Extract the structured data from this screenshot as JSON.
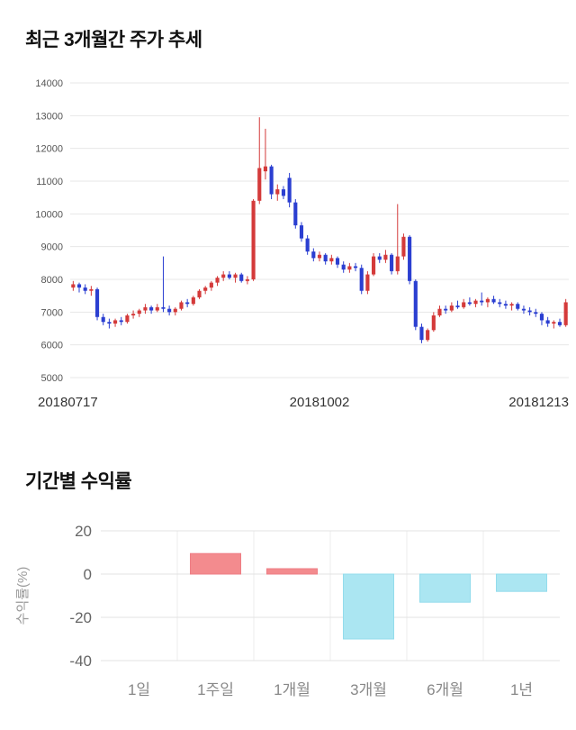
{
  "section_price": {
    "title": "최근 3개월간 주가 추세"
  },
  "section_return": {
    "title": "기간별 수익률"
  },
  "chart_data": [
    {
      "type": "candlestick",
      "title": "최근 3개월간 주가 추세",
      "ylim": [
        5000,
        14000
      ],
      "y_ticks": [
        5000,
        6000,
        7000,
        8000,
        9000,
        10000,
        11000,
        12000,
        13000,
        14000
      ],
      "x_labels": [
        "20180717",
        "20181002",
        "20181213"
      ],
      "up_color": "#d43a3a",
      "down_color": "#2b3fd1",
      "grid_color": "#e7e7e7",
      "tick_label_color": "#555555",
      "x_label_color": "#333333",
      "candles": [
        [
          7750,
          7950,
          7650,
          7850
        ],
        [
          7850,
          7900,
          7600,
          7750
        ],
        [
          7750,
          7850,
          7550,
          7650
        ],
        [
          7650,
          7800,
          7500,
          7700
        ],
        [
          7700,
          7750,
          6750,
          6850
        ],
        [
          6850,
          6950,
          6600,
          6700
        ],
        [
          6700,
          6800,
          6500,
          6650
        ],
        [
          6650,
          6800,
          6550,
          6750
        ],
        [
          6750,
          6850,
          6600,
          6700
        ],
        [
          6700,
          6950,
          6650,
          6900
        ],
        [
          6900,
          7050,
          6800,
          6950
        ],
        [
          6950,
          7100,
          6850,
          7050
        ],
        [
          7050,
          7250,
          6950,
          7150
        ],
        [
          7150,
          7200,
          6950,
          7050
        ],
        [
          7050,
          7250,
          7000,
          7150
        ],
        [
          7150,
          8700,
          7000,
          7100
        ],
        [
          7100,
          7200,
          6900,
          7000
        ],
        [
          7000,
          7150,
          6900,
          7100
        ],
        [
          7100,
          7350,
          7050,
          7300
        ],
        [
          7300,
          7400,
          7150,
          7250
        ],
        [
          7250,
          7500,
          7200,
          7450
        ],
        [
          7450,
          7700,
          7400,
          7650
        ],
        [
          7650,
          7800,
          7550,
          7750
        ],
        [
          7750,
          7950,
          7650,
          7900
        ],
        [
          7900,
          8100,
          7800,
          8050
        ],
        [
          8050,
          8250,
          7950,
          8150
        ],
        [
          8150,
          8250,
          8000,
          8050
        ],
        [
          8050,
          8200,
          7900,
          8150
        ],
        [
          8150,
          8200,
          7900,
          7950
        ],
        [
          7950,
          8100,
          7850,
          8000
        ],
        [
          8000,
          10450,
          7950,
          10400
        ],
        [
          10400,
          12950,
          10300,
          11400
        ],
        [
          11300,
          12600,
          11050,
          11450
        ],
        [
          11450,
          11500,
          10450,
          10600
        ],
        [
          10600,
          10900,
          10400,
          10750
        ],
        [
          10750,
          10850,
          10450,
          10550
        ],
        [
          11100,
          11250,
          10200,
          10350
        ],
        [
          10350,
          10450,
          9550,
          9650
        ],
        [
          9650,
          9750,
          9150,
          9250
        ],
        [
          9250,
          9350,
          8750,
          8850
        ],
        [
          8850,
          8950,
          8550,
          8650
        ],
        [
          8650,
          8850,
          8550,
          8750
        ],
        [
          8750,
          8800,
          8450,
          8550
        ],
        [
          8550,
          8750,
          8450,
          8650
        ],
        [
          8650,
          8700,
          8350,
          8450
        ],
        [
          8450,
          8550,
          8200,
          8300
        ],
        [
          8300,
          8500,
          8200,
          8400
        ],
        [
          8400,
          8500,
          8250,
          8350
        ],
        [
          8350,
          8450,
          7550,
          7650
        ],
        [
          7650,
          8250,
          7550,
          8150
        ],
        [
          8150,
          8800,
          8100,
          8700
        ],
        [
          8700,
          8800,
          8500,
          8600
        ],
        [
          8600,
          8900,
          8500,
          8750
        ],
        [
          8750,
          8800,
          8150,
          8250
        ],
        [
          8250,
          10300,
          8150,
          8700
        ],
        [
          8700,
          9400,
          8600,
          9300
        ],
        [
          9300,
          9350,
          7850,
          7950
        ],
        [
          7950,
          8000,
          6450,
          6550
        ],
        [
          6550,
          6650,
          6050,
          6150
        ],
        [
          6150,
          6500,
          6100,
          6450
        ],
        [
          6450,
          7000,
          6400,
          6900
        ],
        [
          6900,
          7200,
          6850,
          7100
        ],
        [
          7100,
          7200,
          6950,
          7050
        ],
        [
          7050,
          7300,
          7000,
          7200
        ],
        [
          7200,
          7350,
          7100,
          7150
        ],
        [
          7150,
          7400,
          7100,
          7300
        ],
        [
          7300,
          7450,
          7200,
          7250
        ],
        [
          7250,
          7400,
          7150,
          7350
        ],
        [
          7350,
          7600,
          7200,
          7300
        ],
        [
          7300,
          7450,
          7150,
          7400
        ],
        [
          7400,
          7500,
          7250,
          7300
        ],
        [
          7300,
          7400,
          7150,
          7250
        ],
        [
          7250,
          7350,
          7100,
          7200
        ],
        [
          7200,
          7300,
          7050,
          7250
        ],
        [
          7250,
          7300,
          7050,
          7100
        ],
        [
          7100,
          7200,
          6950,
          7050
        ],
        [
          7050,
          7150,
          6900,
          7000
        ],
        [
          7000,
          7100,
          6850,
          6950
        ],
        [
          6950,
          7000,
          6600,
          6750
        ],
        [
          6750,
          6850,
          6550,
          6650
        ],
        [
          6650,
          6750,
          6500,
          6700
        ],
        [
          6700,
          6800,
          6550,
          6600
        ],
        [
          6600,
          7400,
          6550,
          7300
        ]
      ]
    },
    {
      "type": "bar",
      "title": "기간별 수익률",
      "categories": [
        "1일",
        "1주일",
        "1개월",
        "3개월",
        "6개월",
        "1년"
      ],
      "values": [
        0,
        9.5,
        2.5,
        -30,
        -13,
        -8
      ],
      "ylabel": "수익률(%)",
      "y_ticks": [
        20,
        0,
        -20,
        -40
      ],
      "ylim": [
        -40,
        20
      ],
      "positive_color": "#f38b8e",
      "positive_border": "#ee7d84",
      "negative_color": "#abe6f2",
      "negative_border": "#93dcec",
      "grid_color": "#e3e3e3",
      "tick_label_color": "#666666",
      "category_label_color": "#888888",
      "axis_title_color": "#999999"
    }
  ]
}
